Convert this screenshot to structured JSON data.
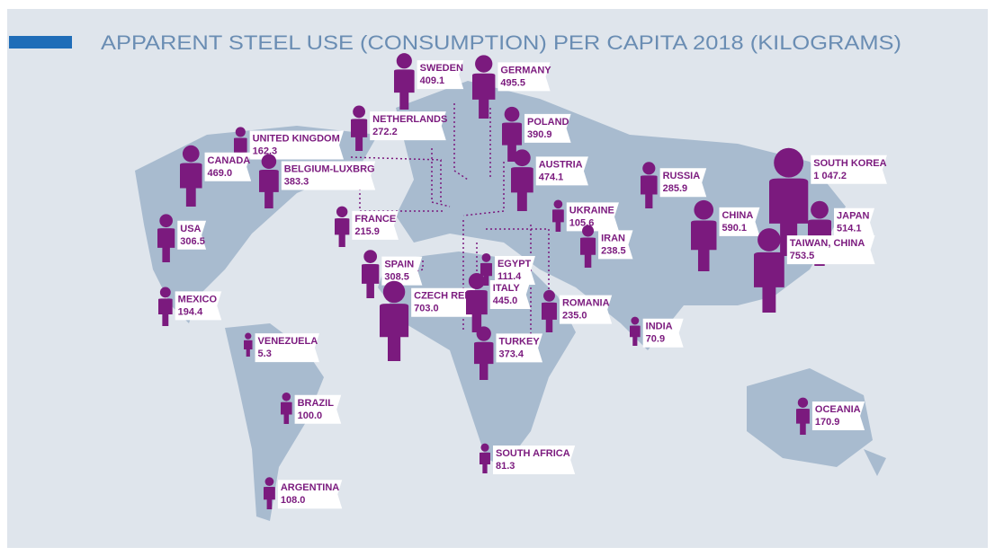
{
  "title": "APPARENT STEEL USE (CONSUMPTION) PER CAPITA 2018 (KILOGRAMS)",
  "countries": [
    {
      "name": "SWEDEN",
      "value": 409.1
    },
    {
      "name": "GERMANY",
      "value": 495.5
    },
    {
      "name": "UNITED KINGDOM",
      "value": 162.3
    },
    {
      "name": "NETHERLANDS",
      "value": 272.2
    },
    {
      "name": "POLAND",
      "value": 390.9
    },
    {
      "name": "CANADA",
      "value": 469,
      "value_label": "469.0"
    },
    {
      "name": "BELGIUM-LUXBRG",
      "value": 383.3
    },
    {
      "name": "AUSTRIA",
      "value": 474.1
    },
    {
      "name": "RUSSIA",
      "value": 285.9
    },
    {
      "name": "SOUTH KOREA",
      "value": 1047.2,
      "value_label": "1 047.2"
    },
    {
      "name": "UKRAINE",
      "value": 105.6
    },
    {
      "name": "USA",
      "value": 306.5
    },
    {
      "name": "FRANCE",
      "value": 215.9
    },
    {
      "name": "CHINA",
      "value": 590.1
    },
    {
      "name": "JAPAN",
      "value": 514.1
    },
    {
      "name": "IRAN",
      "value": 238.5
    },
    {
      "name": "SPAIN",
      "value": 308.5
    },
    {
      "name": "EGYPT",
      "value": 111.4
    },
    {
      "name": "TAIWAN, CHINA",
      "value": 753.5
    },
    {
      "name": "MEXICO",
      "value": 194.4
    },
    {
      "name": "CZECH REP",
      "value": 703,
      "value_label": "703.0"
    },
    {
      "name": "ITALY",
      "value": 445,
      "value_label": "445.0"
    },
    {
      "name": "ROMANIA",
      "value": 235,
      "value_label": "235.0"
    },
    {
      "name": "INDIA",
      "value": 70.9
    },
    {
      "name": "VENEZUELA",
      "value": 5.3
    },
    {
      "name": "TURKEY",
      "value": 373.4
    },
    {
      "name": "BRAZIL",
      "value": 100,
      "value_label": "100.0"
    },
    {
      "name": "OCEANIA",
      "value": 170.9
    },
    {
      "name": "SOUTH AFRICA",
      "value": 81.3
    },
    {
      "name": "ARGENTINA",
      "value": 108,
      "value_label": "108.0"
    }
  ]
}
